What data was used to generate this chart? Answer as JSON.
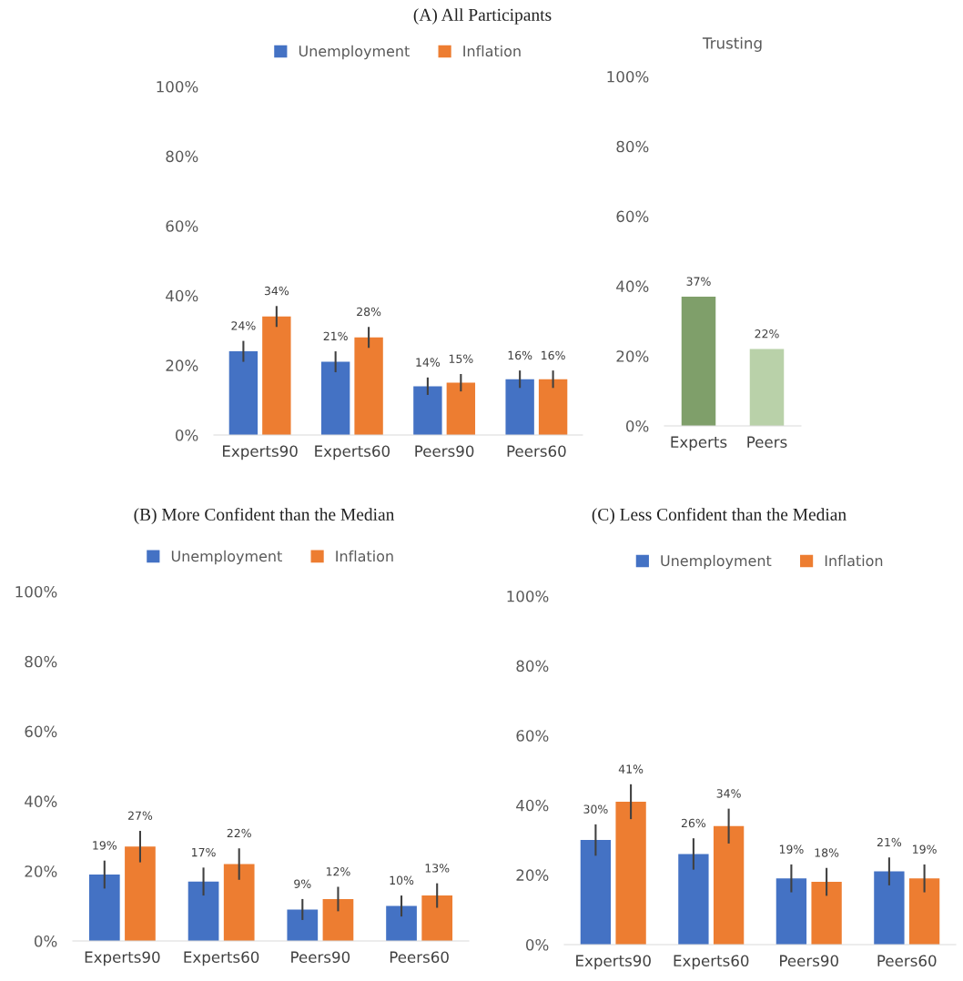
{
  "chart_data": [
    {
      "type": "bar",
      "title": "(A) All Participants",
      "categories": [
        "Experts90",
        "Experts60",
        "Peers90",
        "Peers60"
      ],
      "legend": "top",
      "grid": false,
      "ylim": [
        0,
        100
      ],
      "yticks": [
        {
          "value": 0,
          "label": "0%"
        },
        {
          "value": 20,
          "label": "20%"
        },
        {
          "value": 40,
          "label": "40%"
        },
        {
          "value": 60,
          "label": "60%"
        },
        {
          "value": 80,
          "label": "80%"
        },
        {
          "value": 100,
          "label": "100%"
        }
      ],
      "series": [
        {
          "name": "Unemployment",
          "color": "#4472c4",
          "values": [
            24,
            21,
            14,
            16
          ],
          "errors": [
            3,
            3,
            2.5,
            2.5
          ],
          "value_labels": [
            "24%",
            "21%",
            "14%",
            "16%"
          ]
        },
        {
          "name": "Inflation",
          "color": "#ed7d31",
          "values": [
            34,
            28,
            15,
            16
          ],
          "errors": [
            3,
            3,
            2.5,
            2.5
          ],
          "value_labels": [
            "34%",
            "28%",
            "15%",
            "16%"
          ]
        }
      ]
    },
    {
      "type": "bar",
      "title": "Trusting",
      "categories": [
        "Experts",
        "Peers"
      ],
      "legend": false,
      "grid": false,
      "ylim": [
        0,
        100
      ],
      "yticks": [
        {
          "value": 0,
          "label": "0%"
        },
        {
          "value": 20,
          "label": "20%"
        },
        {
          "value": 40,
          "label": "40%"
        },
        {
          "value": 60,
          "label": "60%"
        },
        {
          "value": 80,
          "label": "80%"
        },
        {
          "value": 100,
          "label": "100%"
        }
      ],
      "series": [
        {
          "colors": [
            "#7f9f6a",
            "#b9d1a9"
          ],
          "values": [
            37,
            22
          ],
          "value_labels": [
            "37%",
            "22%"
          ]
        }
      ]
    },
    {
      "type": "bar",
      "title": "(B) More Confident than the Median",
      "categories": [
        "Experts90",
        "Experts60",
        "Peers90",
        "Peers60"
      ],
      "legend": "top",
      "grid": false,
      "ylim": [
        0,
        100
      ],
      "yticks": [
        {
          "value": 0,
          "label": "0%"
        },
        {
          "value": 20,
          "label": "20%"
        },
        {
          "value": 40,
          "label": "40%"
        },
        {
          "value": 60,
          "label": "60%"
        },
        {
          "value": 80,
          "label": "80%"
        },
        {
          "value": 100,
          "label": "100%"
        }
      ],
      "series": [
        {
          "name": "Unemployment",
          "color": "#4472c4",
          "values": [
            19,
            17,
            9,
            10
          ],
          "errors": [
            4,
            4,
            3,
            3
          ],
          "value_labels": [
            "19%",
            "17%",
            "9%",
            "10%"
          ]
        },
        {
          "name": "Inflation",
          "color": "#ed7d31",
          "values": [
            27,
            22,
            12,
            13
          ],
          "errors": [
            4.5,
            4.5,
            3.5,
            3.5
          ],
          "value_labels": [
            "27%",
            "22%",
            "12%",
            "13%"
          ]
        }
      ]
    },
    {
      "type": "bar",
      "title": "(C) Less Confident than the Median",
      "categories": [
        "Experts90",
        "Experts60",
        "Peers90",
        "Peers60"
      ],
      "legend": "top",
      "grid": false,
      "ylim": [
        0,
        100
      ],
      "yticks": [
        {
          "value": 0,
          "label": "0%"
        },
        {
          "value": 20,
          "label": "20%"
        },
        {
          "value": 40,
          "label": "40%"
        },
        {
          "value": 60,
          "label": "60%"
        },
        {
          "value": 80,
          "label": "80%"
        },
        {
          "value": 100,
          "label": "100%"
        }
      ],
      "series": [
        {
          "name": "Unemployment",
          "color": "#4472c4",
          "values": [
            30,
            26,
            19,
            21
          ],
          "errors": [
            4.5,
            4.5,
            4,
            4
          ],
          "value_labels": [
            "30%",
            "26%",
            "19%",
            "21%"
          ]
        },
        {
          "name": "Inflation",
          "color": "#ed7d31",
          "values": [
            41,
            34,
            18,
            19
          ],
          "errors": [
            5,
            5,
            4,
            4
          ],
          "value_labels": [
            "41%",
            "34%",
            "18%",
            "19%"
          ]
        }
      ]
    }
  ]
}
